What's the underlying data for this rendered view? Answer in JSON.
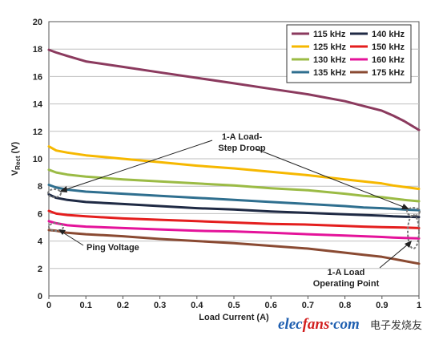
{
  "chart_data": {
    "type": "line",
    "title": "",
    "xlabel": "Load Current (A)",
    "ylabel": "V",
    "ylabel_subscript": "Rect",
    "ylabel_unit": "(V)",
    "xlim": [
      0,
      1
    ],
    "ylim": [
      0,
      20
    ],
    "x_ticks": [
      "0",
      "0.1",
      "0.2",
      "0.3",
      "0.4",
      "0.5",
      "0.6",
      "0.7",
      "0.8",
      "0.9",
      "1"
    ],
    "y_ticks": [
      "0",
      "2",
      "4",
      "6",
      "8",
      "10",
      "12",
      "14",
      "16",
      "18",
      "20"
    ],
    "grid": "horizontal",
    "legend_placement": "top-right",
    "x": [
      0,
      0.02,
      0.05,
      0.1,
      0.2,
      0.3,
      0.4,
      0.5,
      0.6,
      0.7,
      0.8,
      0.85,
      0.9,
      0.93,
      0.96,
      1.0
    ],
    "series": [
      {
        "name": "115 kHz",
        "color": "#8b3a5e",
        "values": [
          17.95,
          17.75,
          17.5,
          17.1,
          16.7,
          16.3,
          15.9,
          15.5,
          15.1,
          14.7,
          14.2,
          13.85,
          13.5,
          13.15,
          12.75,
          12.1
        ]
      },
      {
        "name": "125 kHz",
        "color": "#f6b800",
        "values": [
          10.9,
          10.6,
          10.45,
          10.25,
          10.0,
          9.75,
          9.5,
          9.3,
          9.05,
          8.8,
          8.5,
          8.35,
          8.2,
          8.05,
          7.95,
          7.8
        ]
      },
      {
        "name": "130 kHz",
        "color": "#9bbb45",
        "values": [
          9.2,
          9.0,
          8.85,
          8.7,
          8.5,
          8.35,
          8.2,
          8.05,
          7.85,
          7.7,
          7.45,
          7.3,
          7.2,
          7.1,
          7.0,
          6.9
        ]
      },
      {
        "name": "135 kHz",
        "color": "#2f6f8f",
        "values": [
          8.1,
          7.9,
          7.75,
          7.6,
          7.45,
          7.3,
          7.15,
          7.0,
          6.85,
          6.7,
          6.55,
          6.45,
          6.4,
          6.35,
          6.3,
          6.25
        ]
      },
      {
        "name": "140 kHz",
        "color": "#1f2a44",
        "values": [
          7.4,
          7.15,
          7.0,
          6.85,
          6.7,
          6.55,
          6.4,
          6.3,
          6.15,
          6.05,
          5.95,
          5.9,
          5.85,
          5.8,
          5.78,
          5.75
        ]
      },
      {
        "name": "150 kHz",
        "color": "#e41e1e",
        "values": [
          6.2,
          6.0,
          5.9,
          5.8,
          5.65,
          5.55,
          5.45,
          5.35,
          5.25,
          5.2,
          5.1,
          5.05,
          5.02,
          5.0,
          4.98,
          4.95
        ]
      },
      {
        "name": "160 kHz",
        "color": "#e4139a",
        "values": [
          5.45,
          5.3,
          5.15,
          5.05,
          4.95,
          4.85,
          4.75,
          4.7,
          4.6,
          4.5,
          4.4,
          4.35,
          4.3,
          4.25,
          4.22,
          4.2
        ]
      },
      {
        "name": "175 kHz",
        "color": "#8a4a32",
        "values": [
          4.8,
          4.75,
          4.6,
          4.5,
          4.35,
          4.15,
          4.0,
          3.85,
          3.65,
          3.45,
          3.15,
          3.0,
          2.85,
          2.7,
          2.55,
          2.35
        ]
      }
    ],
    "annotations": {
      "step_droop": [
        "1-A Load-",
        "Step Droop"
      ],
      "ping_voltage": "Ping Voltage",
      "operating_point": [
        "1-A Load",
        "Operating Point"
      ]
    }
  },
  "watermark": {
    "main_prefix": "elec",
    "main_suffix": "fans",
    "domain_dot": "·",
    "domain": "com",
    "chinese": "电子发烧友"
  },
  "colors": {
    "plot_bg": "#ffffff",
    "grid": "#bfbfbf",
    "frame": "#555555",
    "annotation_dash": "#7a7a7a",
    "wm_blue": "#1f5fb0",
    "wm_red": "#d21e1e"
  }
}
